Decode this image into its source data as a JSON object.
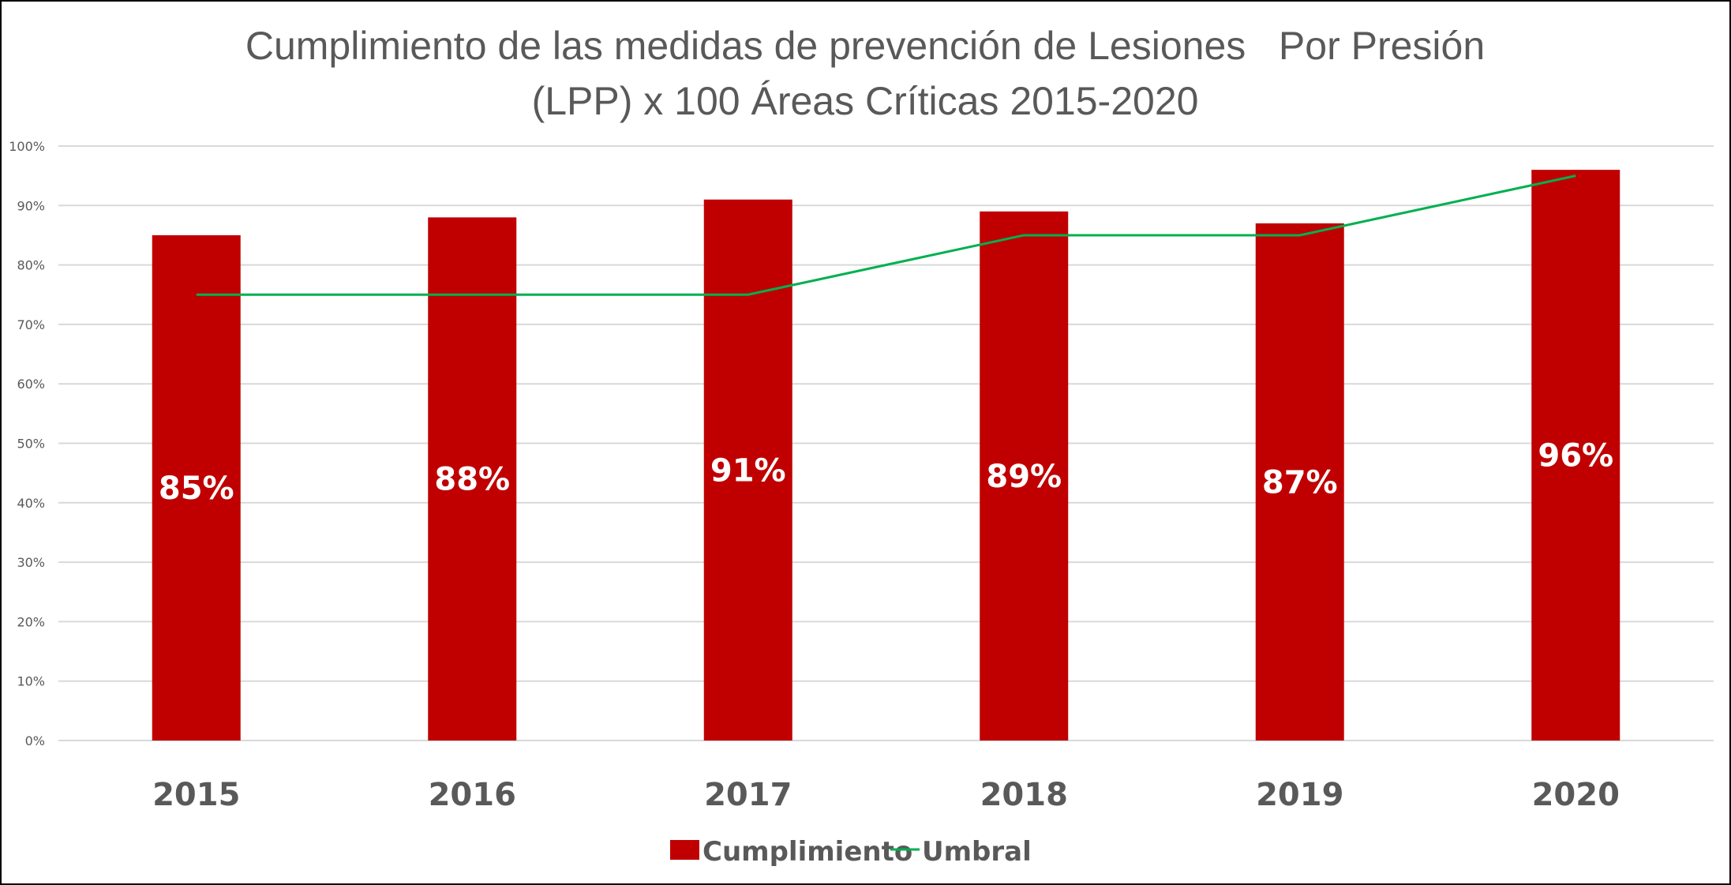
{
  "chart_data": {
    "type": "bar",
    "title_lines": [
      "Cumplimiento de las medidas de prevención de Lesiones   Por Presión",
      "(LPP) x 100 Áreas Críticas 2015-2020"
    ],
    "categories": [
      "2015",
      "2016",
      "2017",
      "2018",
      "2019",
      "2020"
    ],
    "series": [
      {
        "name": "Cumplimiento",
        "kind": "bar",
        "color": "#C00000",
        "values": [
          85,
          88,
          91,
          89,
          87,
          96
        ],
        "data_labels": [
          "85%",
          "88%",
          "91%",
          "89%",
          "87%",
          "96%"
        ]
      },
      {
        "name": "Umbral",
        "kind": "line",
        "color": "#00B050",
        "values": [
          75,
          75,
          75,
          85,
          85,
          95
        ]
      }
    ],
    "ylim": [
      0,
      100
    ],
    "yticks": [
      "0%",
      "10%",
      "20%",
      "30%",
      "40%",
      "50%",
      "60%",
      "70%",
      "80%",
      "90%",
      "100%"
    ],
    "grid": true,
    "legend": "bottom"
  }
}
